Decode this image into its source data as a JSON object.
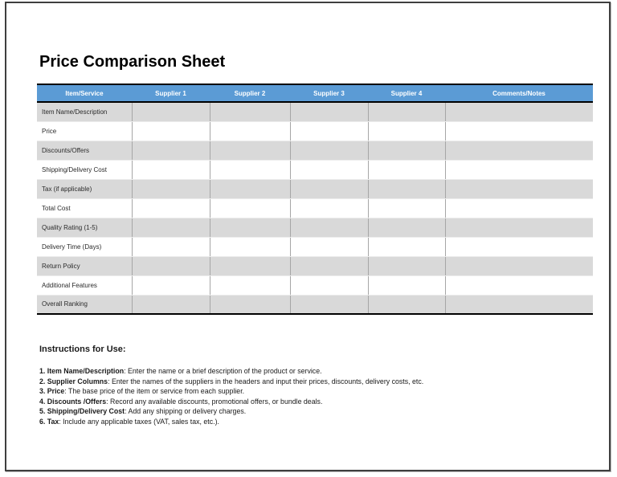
{
  "title": "Price Comparison Sheet",
  "table": {
    "columns": [
      "Item/Service",
      "Supplier 1",
      "Supplier 2",
      "Supplier 3",
      "Supplier 4",
      "Comments/Notes"
    ],
    "rows": [
      {
        "label": "Item Name/Description",
        "shaded": true,
        "values": [
          "",
          "",
          "",
          "",
          ""
        ]
      },
      {
        "label": "Price",
        "shaded": false,
        "values": [
          "",
          "",
          "",
          "",
          ""
        ]
      },
      {
        "label": "Discounts/Offers",
        "shaded": true,
        "values": [
          "",
          "",
          "",
          "",
          ""
        ]
      },
      {
        "label": "Shipping/Delivery Cost",
        "shaded": false,
        "values": [
          "",
          "",
          "",
          "",
          ""
        ]
      },
      {
        "label": "Tax (if applicable)",
        "shaded": true,
        "values": [
          "",
          "",
          "",
          "",
          ""
        ]
      },
      {
        "label": "Total Cost",
        "shaded": false,
        "values": [
          "",
          "",
          "",
          "",
          ""
        ]
      },
      {
        "label": "Quality Rating (1-5)",
        "shaded": true,
        "values": [
          "",
          "",
          "",
          "",
          ""
        ]
      },
      {
        "label": "Delivery Time (Days)",
        "shaded": false,
        "values": [
          "",
          "",
          "",
          "",
          ""
        ]
      },
      {
        "label": "Return Policy",
        "shaded": true,
        "values": [
          "",
          "",
          "",
          "",
          ""
        ]
      },
      {
        "label": "Additional Features",
        "shaded": false,
        "values": [
          "",
          "",
          "",
          "",
          ""
        ]
      },
      {
        "label": "Overall Ranking",
        "shaded": true,
        "values": [
          "",
          "",
          "",
          "",
          ""
        ]
      }
    ],
    "colors": {
      "header_bg": "#5B9BD5",
      "header_text": "#FFFFFF",
      "shaded_row_bg": "#D9D9D9",
      "grid_line": "#A6A6A6"
    }
  },
  "instructions": {
    "heading": "Instructions for Use:",
    "items": [
      {
        "bold": "1. Item Name/Description",
        "rest": ": Enter the name or a brief description of the product or service."
      },
      {
        "bold": "2. Supplier Columns",
        "rest": ": Enter the names of the suppliers in the headers and input their prices, discounts, delivery costs, etc."
      },
      {
        "bold": "3. Price",
        "rest": ": The base price of the item or service from each supplier."
      },
      {
        "bold": "4. Discounts /Offers",
        "rest": ": Record any available discounts, promotional offers, or bundle deals."
      },
      {
        "bold": "5. Shipping/Delivery Cost",
        "rest": ": Add any shipping or delivery charges."
      },
      {
        "bold": "6. Tax",
        "rest": ": Include any applicable taxes (VAT, sales tax, etc.)."
      }
    ]
  }
}
